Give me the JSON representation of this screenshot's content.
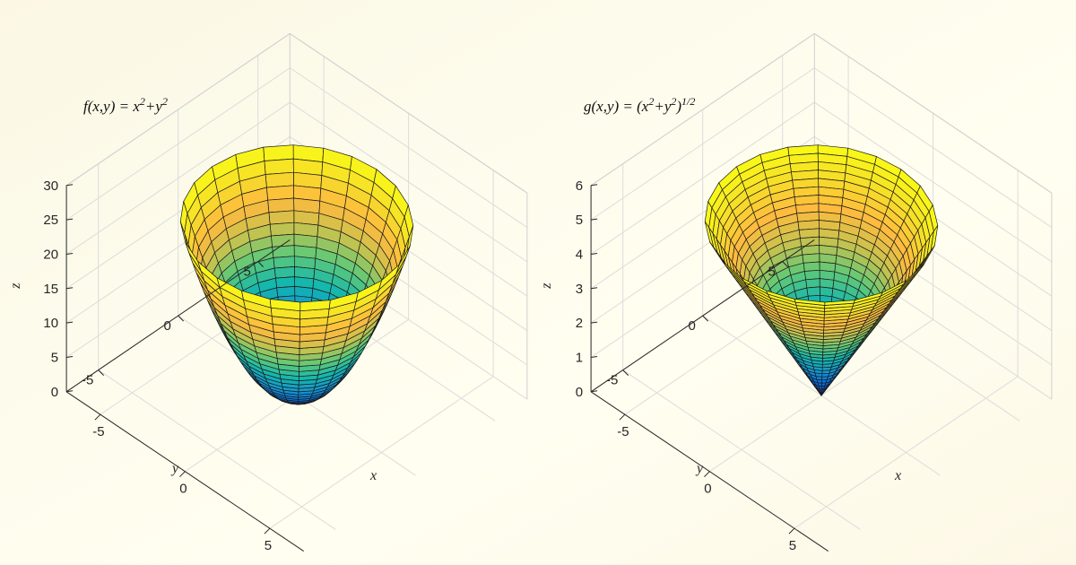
{
  "chart_data": [
    {
      "type": "surface",
      "surface": "paraboloid",
      "title": {
        "base": "f(x,y) = x",
        "exp1": "2",
        "mid": "+y",
        "exp2": "2",
        "after": "",
        "exp3": ""
      },
      "xlabel": "x",
      "ylabel": "y",
      "zlabel": "z",
      "xlim": [
        -7,
        7
      ],
      "ylim": [
        -7,
        7
      ],
      "zlim": [
        0,
        30
      ],
      "xticks": [
        -5,
        0,
        5
      ],
      "yticks": [
        -5,
        0,
        5
      ],
      "zticks": [
        0,
        5,
        10,
        15,
        20,
        25,
        30
      ],
      "radius_max": 5,
      "grid": true,
      "colormap": "parula"
    },
    {
      "type": "surface",
      "surface": "cone",
      "title": {
        "base": "g(x,y) = (x",
        "exp1": "2",
        "mid": "+y",
        "exp2": "2",
        "after": ")",
        "exp3": "1/2"
      },
      "xlabel": "x",
      "ylabel": "y",
      "zlabel": "z",
      "xlim": [
        -7,
        7
      ],
      "ylim": [
        -7,
        7
      ],
      "zlim": [
        0,
        6
      ],
      "xticks": [
        -5,
        0,
        5
      ],
      "yticks": [
        -5,
        0,
        5
      ],
      "zticks": [
        0,
        1,
        2,
        3,
        4,
        5,
        6
      ],
      "radius_max": 5,
      "grid": true,
      "colormap": "parula"
    }
  ]
}
